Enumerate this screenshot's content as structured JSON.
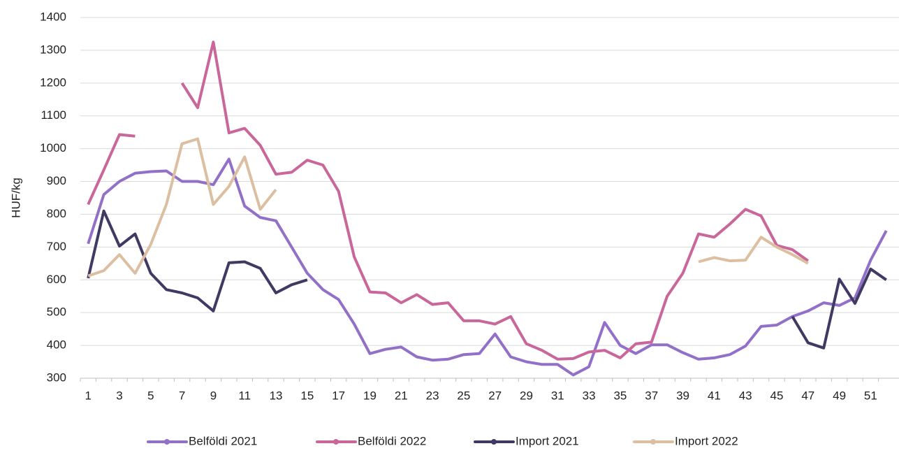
{
  "chart_data": {
    "type": "line",
    "y_label": "HUF/kg",
    "categories": [
      1,
      null,
      3,
      null,
      5,
      null,
      7,
      null,
      9,
      null,
      11,
      null,
      13,
      null,
      15,
      null,
      17,
      null,
      19,
      null,
      21,
      null,
      23,
      null,
      25,
      null,
      27,
      null,
      29,
      null,
      31,
      null,
      33,
      null,
      35,
      null,
      37,
      null,
      39,
      null,
      41,
      null,
      43,
      null,
      45,
      null,
      47,
      null,
      49,
      null,
      51,
      null
    ],
    "ylim": [
      300,
      1400
    ],
    "yticks": [
      300,
      400,
      500,
      600,
      700,
      800,
      900,
      1000,
      1100,
      1200,
      1300,
      1400
    ],
    "grid": true,
    "legend": "bottom",
    "series": [
      {
        "name": "Belföldi 2021",
        "color": "#9370c8",
        "values": [
          710,
          860,
          900,
          925,
          930,
          932,
          900,
          900,
          890,
          968,
          825,
          790,
          780,
          700,
          620,
          570,
          540,
          465,
          375,
          388,
          395,
          365,
          355,
          358,
          372,
          375,
          435,
          365,
          350,
          342,
          342,
          310,
          335,
          470,
          400,
          375,
          402,
          402,
          378,
          358,
          362,
          372,
          398,
          458,
          462,
          488,
          505,
          530,
          522,
          545,
          660,
          750
        ]
      },
      {
        "name": "Belföldi 2022",
        "color": "#c9669a",
        "values": [
          830,
          935,
          1043,
          1038,
          null,
          null,
          1200,
          1125,
          1325,
          1048,
          1062,
          1010,
          922,
          928,
          965,
          950,
          870,
          670,
          563,
          560,
          530,
          555,
          525,
          530,
          475,
          475,
          465,
          488,
          405,
          385,
          358,
          360,
          380,
          385,
          362,
          405,
          410,
          550,
          620,
          740,
          730,
          770,
          815,
          795,
          705,
          692,
          658,
          null,
          null,
          null,
          null,
          null
        ]
      },
      {
        "name": "Import 2021",
        "color": "#403a63",
        "values": [
          605,
          810,
          703,
          740,
          620,
          570,
          560,
          545,
          505,
          652,
          655,
          635,
          560,
          585,
          600,
          null,
          null,
          null,
          null,
          null,
          null,
          null,
          null,
          null,
          null,
          null,
          null,
          null,
          null,
          null,
          null,
          null,
          null,
          null,
          null,
          null,
          null,
          null,
          null,
          null,
          null,
          null,
          null,
          null,
          null,
          488,
          408,
          392,
          602,
          528,
          633,
          600
        ]
      },
      {
        "name": "Import 2022",
        "color": "#dcbfa0",
        "values": [
          612,
          628,
          677,
          620,
          708,
          830,
          1015,
          1030,
          830,
          885,
          975,
          815,
          875,
          null,
          null,
          null,
          null,
          null,
          null,
          null,
          null,
          null,
          null,
          null,
          null,
          null,
          null,
          null,
          null,
          null,
          null,
          null,
          null,
          null,
          null,
          null,
          null,
          null,
          null,
          655,
          668,
          658,
          660,
          730,
          700,
          677,
          650,
          null,
          null,
          null,
          null,
          null
        ]
      }
    ]
  }
}
